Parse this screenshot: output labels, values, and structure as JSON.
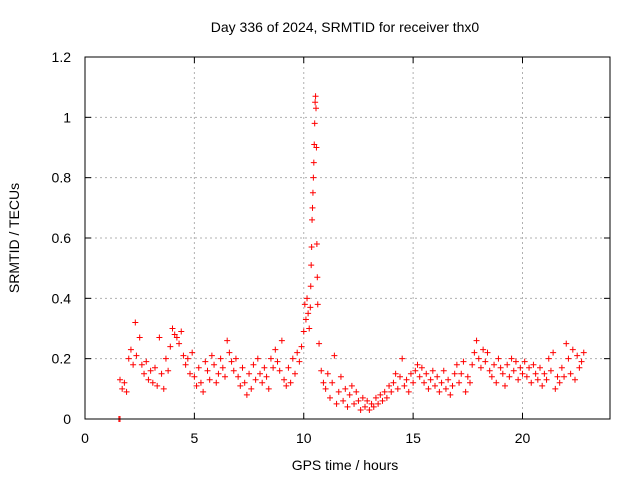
{
  "chart_data": {
    "type": "scatter",
    "title": "Day 336 of 2024, SRMTID for receiver thx0",
    "xlabel": "GPS time / hours",
    "ylabel": "SRMTID / TECUs",
    "xlim": [
      0,
      24
    ],
    "ylim": [
      0,
      1.2
    ],
    "xticks": [
      0,
      5,
      10,
      15,
      20
    ],
    "xtick_labels": [
      "0",
      "5",
      "10",
      "15",
      "20"
    ],
    "yticks": [
      0,
      0.2,
      0.4,
      0.6,
      0.8,
      1.0,
      1.2
    ],
    "ytick_labels": [
      "0",
      "0.2",
      "0.4",
      "0.6",
      "0.8",
      "1",
      "1.2"
    ],
    "grid": true,
    "marker": "plus",
    "color": "#ff0000",
    "series": [
      {
        "name": "thx0",
        "points": [
          [
            1.55,
            0.0
          ],
          [
            1.6,
            0.0
          ],
          [
            1.6,
            0.13
          ],
          [
            1.7,
            0.1
          ],
          [
            1.8,
            0.12
          ],
          [
            1.9,
            0.09
          ],
          [
            2.0,
            0.2
          ],
          [
            2.1,
            0.23
          ],
          [
            2.2,
            0.18
          ],
          [
            2.3,
            0.32
          ],
          [
            2.35,
            0.21
          ],
          [
            2.5,
            0.27
          ],
          [
            2.6,
            0.18
          ],
          [
            2.7,
            0.15
          ],
          [
            2.8,
            0.19
          ],
          [
            2.9,
            0.13
          ],
          [
            3.0,
            0.16
          ],
          [
            3.1,
            0.12
          ],
          [
            3.2,
            0.17
          ],
          [
            3.3,
            0.11
          ],
          [
            3.4,
            0.27
          ],
          [
            3.5,
            0.15
          ],
          [
            3.6,
            0.1
          ],
          [
            3.7,
            0.2
          ],
          [
            3.8,
            0.16
          ],
          [
            3.9,
            0.24
          ],
          [
            4.0,
            0.3
          ],
          [
            4.1,
            0.28
          ],
          [
            4.2,
            0.27
          ],
          [
            4.3,
            0.25
          ],
          [
            4.4,
            0.29
          ],
          [
            4.5,
            0.21
          ],
          [
            4.6,
            0.18
          ],
          [
            4.7,
            0.2
          ],
          [
            4.8,
            0.15
          ],
          [
            4.9,
            0.22
          ],
          [
            5.0,
            0.14
          ],
          [
            5.1,
            0.11
          ],
          [
            5.2,
            0.17
          ],
          [
            5.3,
            0.12
          ],
          [
            5.4,
            0.09
          ],
          [
            5.5,
            0.19
          ],
          [
            5.6,
            0.16
          ],
          [
            5.7,
            0.13
          ],
          [
            5.8,
            0.21
          ],
          [
            5.9,
            0.18
          ],
          [
            6.0,
            0.12
          ],
          [
            6.1,
            0.15
          ],
          [
            6.2,
            0.2
          ],
          [
            6.3,
            0.17
          ],
          [
            6.4,
            0.14
          ],
          [
            6.5,
            0.26
          ],
          [
            6.6,
            0.22
          ],
          [
            6.7,
            0.19
          ],
          [
            6.8,
            0.16
          ],
          [
            6.9,
            0.2
          ],
          [
            7.0,
            0.14
          ],
          [
            7.1,
            0.11
          ],
          [
            7.2,
            0.17
          ],
          [
            7.3,
            0.12
          ],
          [
            7.4,
            0.08
          ],
          [
            7.5,
            0.15
          ],
          [
            7.6,
            0.1
          ],
          [
            7.7,
            0.18
          ],
          [
            7.8,
            0.13
          ],
          [
            7.9,
            0.2
          ],
          [
            8.0,
            0.15
          ],
          [
            8.1,
            0.12
          ],
          [
            8.2,
            0.17
          ],
          [
            8.3,
            0.14
          ],
          [
            8.4,
            0.1
          ],
          [
            8.5,
            0.2
          ],
          [
            8.6,
            0.17
          ],
          [
            8.7,
            0.23
          ],
          [
            8.8,
            0.19
          ],
          [
            8.9,
            0.16
          ],
          [
            9.0,
            0.26
          ],
          [
            9.1,
            0.13
          ],
          [
            9.2,
            0.11
          ],
          [
            9.3,
            0.17
          ],
          [
            9.4,
            0.12
          ],
          [
            9.5,
            0.2
          ],
          [
            9.6,
            0.15
          ],
          [
            9.7,
            0.22
          ],
          [
            9.8,
            0.19
          ],
          [
            9.9,
            0.24
          ],
          [
            10.0,
            0.29
          ],
          [
            10.05,
            0.38
          ],
          [
            10.1,
            0.33
          ],
          [
            10.15,
            0.4
          ],
          [
            10.2,
            0.35
          ],
          [
            10.25,
            0.3
          ],
          [
            10.3,
            0.37
          ],
          [
            10.32,
            0.44
          ],
          [
            10.34,
            0.51
          ],
          [
            10.36,
            0.57
          ],
          [
            10.38,
            0.66
          ],
          [
            10.4,
            0.7
          ],
          [
            10.42,
            0.75
          ],
          [
            10.44,
            0.8
          ],
          [
            10.46,
            0.85
          ],
          [
            10.48,
            0.91
          ],
          [
            10.5,
            0.98
          ],
          [
            10.52,
            1.05
          ],
          [
            10.54,
            1.07
          ],
          [
            10.56,
            1.03
          ],
          [
            10.58,
            0.9
          ],
          [
            10.6,
            0.58
          ],
          [
            10.62,
            0.47
          ],
          [
            10.64,
            0.38
          ],
          [
            10.7,
            0.25
          ],
          [
            10.8,
            0.16
          ],
          [
            10.9,
            0.12
          ],
          [
            11.0,
            0.1
          ],
          [
            11.1,
            0.15
          ],
          [
            11.2,
            0.07
          ],
          [
            11.3,
            0.12
          ],
          [
            11.4,
            0.21
          ],
          [
            11.5,
            0.05
          ],
          [
            11.6,
            0.09
          ],
          [
            11.7,
            0.14
          ],
          [
            11.8,
            0.06
          ],
          [
            11.9,
            0.1
          ],
          [
            12.0,
            0.04
          ],
          [
            12.1,
            0.08
          ],
          [
            12.2,
            0.11
          ],
          [
            12.3,
            0.05
          ],
          [
            12.4,
            0.09
          ],
          [
            12.5,
            0.06
          ],
          [
            12.6,
            0.03
          ],
          [
            12.7,
            0.07
          ],
          [
            12.8,
            0.04
          ],
          [
            12.9,
            0.06
          ],
          [
            13.0,
            0.03
          ],
          [
            13.1,
            0.05
          ],
          [
            13.2,
            0.04
          ],
          [
            13.3,
            0.07
          ],
          [
            13.4,
            0.05
          ],
          [
            13.5,
            0.08
          ],
          [
            13.6,
            0.06
          ],
          [
            13.7,
            0.09
          ],
          [
            13.8,
            0.07
          ],
          [
            13.9,
            0.11
          ],
          [
            14.0,
            0.09
          ],
          [
            14.1,
            0.12
          ],
          [
            14.2,
            0.15
          ],
          [
            14.3,
            0.1
          ],
          [
            14.4,
            0.14
          ],
          [
            14.5,
            0.2
          ],
          [
            14.6,
            0.11
          ],
          [
            14.7,
            0.13
          ],
          [
            14.8,
            0.09
          ],
          [
            14.9,
            0.15
          ],
          [
            15.0,
            0.12
          ],
          [
            15.1,
            0.16
          ],
          [
            15.2,
            0.18
          ],
          [
            15.3,
            0.14
          ],
          [
            15.4,
            0.17
          ],
          [
            15.5,
            0.12
          ],
          [
            15.6,
            0.15
          ],
          [
            15.7,
            0.1
          ],
          [
            15.8,
            0.13
          ],
          [
            15.9,
            0.16
          ],
          [
            16.0,
            0.11
          ],
          [
            16.1,
            0.14
          ],
          [
            16.2,
            0.09
          ],
          [
            16.3,
            0.12
          ],
          [
            16.4,
            0.16
          ],
          [
            16.5,
            0.1
          ],
          [
            16.6,
            0.13
          ],
          [
            16.7,
            0.08
          ],
          [
            16.8,
            0.11
          ],
          [
            16.9,
            0.15
          ],
          [
            17.0,
            0.18
          ],
          [
            17.1,
            0.12
          ],
          [
            17.2,
            0.15
          ],
          [
            17.3,
            0.19
          ],
          [
            17.4,
            0.09
          ],
          [
            17.5,
            0.14
          ],
          [
            17.6,
            0.12
          ],
          [
            17.7,
            0.18
          ],
          [
            17.8,
            0.22
          ],
          [
            17.9,
            0.26
          ],
          [
            18.0,
            0.2
          ],
          [
            18.1,
            0.17
          ],
          [
            18.2,
            0.23
          ],
          [
            18.3,
            0.19
          ],
          [
            18.4,
            0.22
          ],
          [
            18.5,
            0.16
          ],
          [
            18.6,
            0.14
          ],
          [
            18.7,
            0.18
          ],
          [
            18.8,
            0.12
          ],
          [
            18.9,
            0.2
          ],
          [
            19.0,
            0.17
          ],
          [
            19.1,
            0.15
          ],
          [
            19.2,
            0.11
          ],
          [
            19.3,
            0.18
          ],
          [
            19.4,
            0.14
          ],
          [
            19.5,
            0.2
          ],
          [
            19.6,
            0.16
          ],
          [
            19.7,
            0.19
          ],
          [
            19.8,
            0.13
          ],
          [
            19.9,
            0.17
          ],
          [
            20.0,
            0.15
          ],
          [
            20.1,
            0.19
          ],
          [
            20.2,
            0.14
          ],
          [
            20.3,
            0.17
          ],
          [
            20.4,
            0.12
          ],
          [
            20.5,
            0.18
          ],
          [
            20.6,
            0.15
          ],
          [
            20.7,
            0.13
          ],
          [
            20.8,
            0.17
          ],
          [
            20.9,
            0.11
          ],
          [
            21.0,
            0.15
          ],
          [
            21.1,
            0.13
          ],
          [
            21.2,
            0.2
          ],
          [
            21.3,
            0.16
          ],
          [
            21.4,
            0.22
          ],
          [
            21.5,
            0.1
          ],
          [
            21.6,
            0.14
          ],
          [
            21.7,
            0.12
          ],
          [
            21.8,
            0.17
          ],
          [
            21.9,
            0.14
          ],
          [
            22.0,
            0.25
          ],
          [
            22.1,
            0.2
          ],
          [
            22.2,
            0.15
          ],
          [
            22.3,
            0.23
          ],
          [
            22.4,
            0.13
          ],
          [
            22.5,
            0.21
          ],
          [
            22.6,
            0.17
          ],
          [
            22.7,
            0.19
          ],
          [
            22.8,
            0.22
          ]
        ]
      }
    ]
  }
}
